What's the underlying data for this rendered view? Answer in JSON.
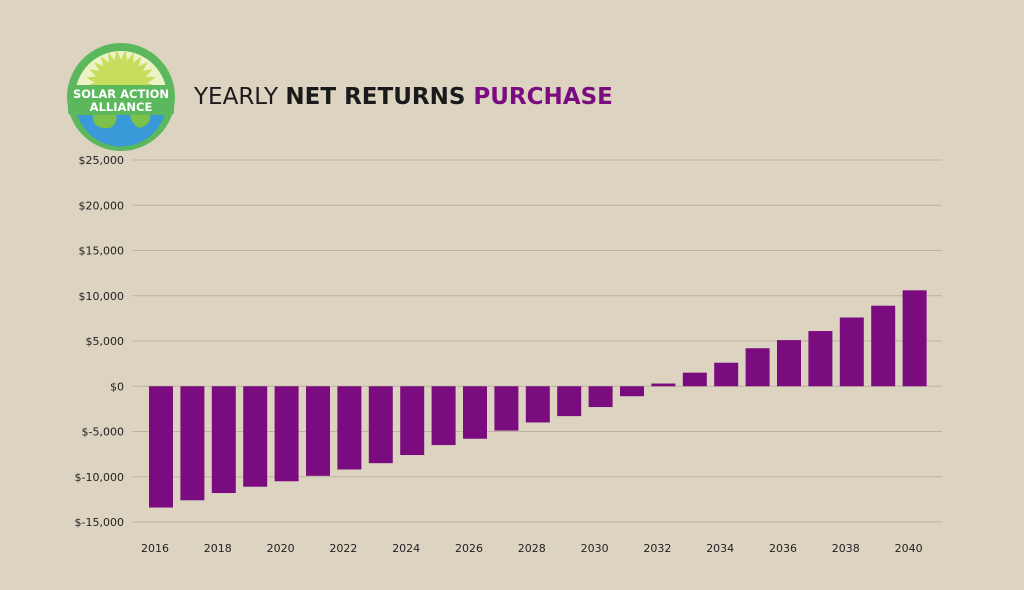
{
  "header": {
    "logo_line1": "SOLAR ACTION",
    "logo_line2": "ALLIANCE",
    "title_part1": "YEARLY ",
    "title_part2": "NET RETURNS",
    "title_part3": " PURCHASE"
  },
  "colors": {
    "background": "#dcd4c1",
    "bar": "#7b0c7f",
    "gridline": "#bdb4a0",
    "title_accent": "#7b0c7f",
    "logo_ring": "#5cb85c",
    "logo_sun": "#c6dd5e",
    "logo_earth": "#3a9ad9"
  },
  "chart_data": {
    "type": "bar",
    "title": "YEARLY NET RETURNS PURCHASE",
    "xlabel": "",
    "ylabel": "",
    "ylim": [
      -15000,
      25000
    ],
    "y_ticks": [
      25000,
      20000,
      15000,
      10000,
      5000,
      0,
      -5000,
      -10000,
      -15000
    ],
    "y_tick_labels": [
      "$25,000",
      "$20,000",
      "$15,000",
      "$10,000",
      "$5,000",
      "$0",
      "$-5,000",
      "$-10,000",
      "$-15,000"
    ],
    "categories": [
      2016,
      2017,
      2018,
      2019,
      2020,
      2021,
      2022,
      2023,
      2024,
      2025,
      2026,
      2027,
      2028,
      2029,
      2030,
      2031,
      2032,
      2033,
      2034,
      2035,
      2036,
      2037,
      2038,
      2039,
      2040
    ],
    "x_tick_labels": [
      "2016",
      "2018",
      "2020",
      "2022",
      "2024",
      "2026",
      "2028",
      "2030",
      "2032",
      "2034",
      "2036",
      "2038",
      "2040"
    ],
    "values": [
      -13400,
      -12600,
      -11800,
      -11100,
      -10500,
      -9900,
      -9200,
      -8500,
      -7600,
      -6500,
      -5800,
      -4900,
      -4000,
      -3300,
      -2300,
      -1100,
      300,
      1500,
      2600,
      4200,
      5100,
      6100,
      7600,
      8900,
      10600
    ],
    "grid": true,
    "legend": "none"
  }
}
